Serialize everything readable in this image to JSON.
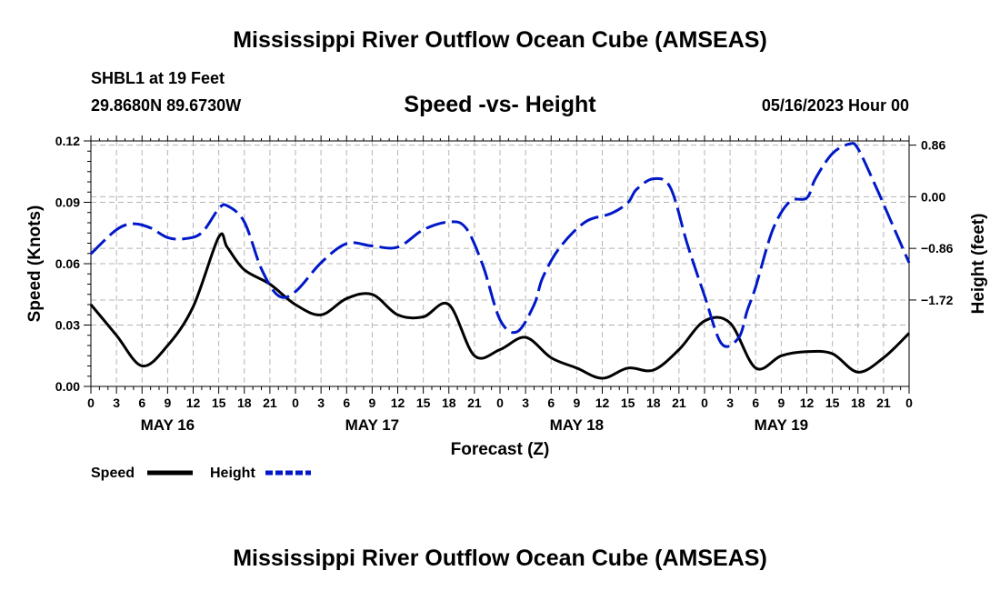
{
  "header": {
    "title": "Mississippi River Outflow Ocean Cube (AMSEAS)",
    "station": "SHBL1 at 19 Feet",
    "coords": "29.8680N  89.6730W",
    "chart_title": "Speed -vs- Height",
    "date": "05/16/2023 Hour 00"
  },
  "footer": {
    "title": "Mississippi River Outflow Ocean Cube (AMSEAS)"
  },
  "chart_data": {
    "type": "line",
    "title": "Speed -vs- Height",
    "xlabel": "Forecast (Z)",
    "ylabel": "Speed (Knots)",
    "y2label": "Height (feet)",
    "xlim": [
      0,
      96
    ],
    "ylim": [
      0,
      0.12
    ],
    "y2lim": [
      -3.16,
      0.93
    ],
    "yticks": [
      "0.00",
      "0.03",
      "0.06",
      "0.09",
      "0.12"
    ],
    "y2ticks": [
      "0.86",
      "0.00",
      "−0.86",
      "−1.72"
    ],
    "y2tick_values": [
      0.86,
      0.0,
      -0.86,
      -1.72
    ],
    "xtick_labels": [
      "0",
      "3",
      "6",
      "9",
      "12",
      "15",
      "18",
      "21",
      "0",
      "3",
      "6",
      "9",
      "12",
      "15",
      "18",
      "21",
      "0",
      "3",
      "6",
      "9",
      "12",
      "15",
      "18",
      "21",
      "0",
      "3",
      "6",
      "9",
      "12",
      "15",
      "18",
      "21",
      "0"
    ],
    "day_labels": [
      {
        "label": "MAY 16",
        "hour": 9
      },
      {
        "label": "MAY 17",
        "hour": 33
      },
      {
        "label": "MAY 18",
        "hour": 57
      },
      {
        "label": "MAY 19",
        "hour": 81
      }
    ],
    "legend": [
      "Speed",
      "Height"
    ],
    "series": [
      {
        "name": "Speed",
        "axis": "left",
        "color": "#000000",
        "dash": "solid",
        "x": [
          0,
          3,
          6,
          9,
          12,
          15,
          16,
          18,
          21,
          24,
          27,
          30,
          33,
          36,
          39,
          42,
          45,
          48,
          51,
          54,
          57,
          60,
          63,
          66,
          69,
          72,
          75,
          78,
          81,
          84,
          87,
          90,
          93,
          96
        ],
        "values": [
          0.04,
          0.025,
          0.01,
          0.02,
          0.039,
          0.073,
          0.068,
          0.057,
          0.05,
          0.04,
          0.035,
          0.043,
          0.045,
          0.035,
          0.034,
          0.04,
          0.015,
          0.018,
          0.024,
          0.014,
          0.009,
          0.004,
          0.009,
          0.008,
          0.018,
          0.032,
          0.031,
          0.009,
          0.015,
          0.017,
          0.016,
          0.007,
          0.014,
          0.026
        ]
      },
      {
        "name": "Height",
        "axis": "right",
        "color": "#0018c8",
        "dash": "dashed",
        "x": [
          0,
          3,
          5,
          7,
          9,
          11,
          13,
          15,
          16,
          18,
          20,
          22,
          24,
          27,
          30,
          33,
          36,
          39,
          42,
          44,
          46,
          48,
          50,
          52,
          53,
          55,
          58,
          61,
          63,
          64,
          66,
          68,
          70,
          72,
          74,
          76,
          77,
          78,
          80,
          82,
          84,
          85,
          87,
          89,
          90,
          92,
          94,
          96
        ],
        "values": [
          -0.95,
          -0.55,
          -0.45,
          -0.52,
          -0.68,
          -0.7,
          -0.6,
          -0.2,
          -0.15,
          -0.42,
          -1.2,
          -1.65,
          -1.58,
          -1.1,
          -0.78,
          -0.82,
          -0.84,
          -0.55,
          -0.42,
          -0.52,
          -1.15,
          -2.05,
          -2.25,
          -1.8,
          -1.35,
          -0.85,
          -0.42,
          -0.28,
          -0.1,
          0.12,
          0.3,
          0.15,
          -0.8,
          -1.65,
          -2.45,
          -2.35,
          -1.9,
          -1.5,
          -0.55,
          -0.08,
          -0.02,
          0.3,
          0.72,
          0.88,
          0.8,
          0.2,
          -0.45,
          -1.1
        ]
      }
    ]
  }
}
